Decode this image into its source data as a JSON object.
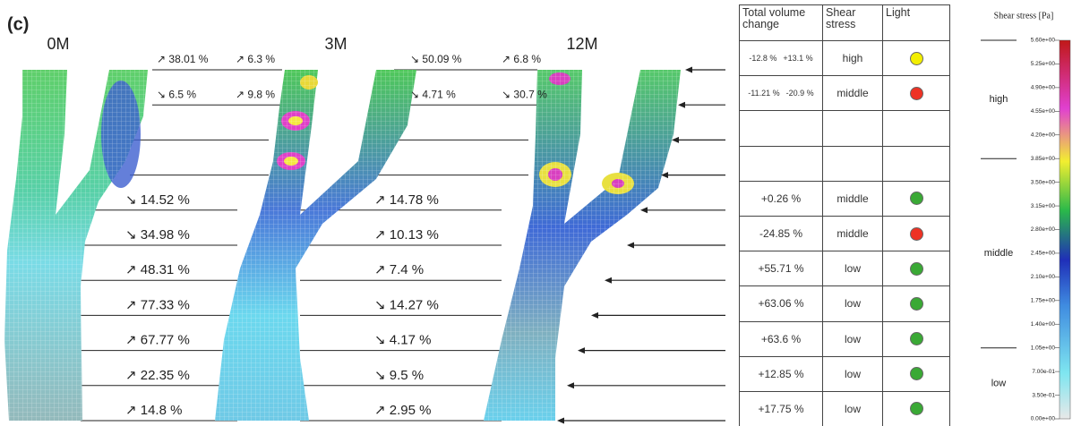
{
  "panel_label": "(c)",
  "timepoints": [
    "0M",
    "3M",
    "12M"
  ],
  "changes": [
    {
      "branches": [
        [
          "↗ 38.01 %",
          "↗ 6.3 %"
        ],
        [
          "↘ 6.5 %",
          "↗ 9.8 %"
        ]
      ],
      "trunk": [
        "↘ 14.52 %",
        "↘ 34.98 %",
        "↗ 48.31 %",
        "↗ 77.33 %",
        "↗ 67.77 %",
        "↗ 22.35 %",
        "↗ 14.8 %"
      ]
    },
    {
      "branches": [
        [
          "↘ 50.09 %",
          "↗ 6.8 %"
        ],
        [
          "↘ 4.71 %",
          "↘ 30.7 %"
        ]
      ],
      "trunk": [
        "↗ 14.78 %",
        "↗ 10.13 %",
        "↗ 7.4 %",
        "↘ 14.27 %",
        "↘ 4.17 %",
        "↘ 9.5 %",
        "↗ 2.95 %"
      ]
    }
  ],
  "table": {
    "header": [
      "Total volume change",
      "Shear stress",
      "Light"
    ],
    "rows": [
      {
        "change": [
          "-12.8 %",
          "+13.1 %"
        ],
        "shear": "high",
        "light": "#f2ee00"
      },
      {
        "change": [
          "-11.21 %",
          "-20.9 %"
        ],
        "shear": "middle",
        "light": "#ee3224"
      },
      null,
      null,
      {
        "change": [
          "+0.26 %"
        ],
        "shear": "middle",
        "light": "#3aa935"
      },
      {
        "change": [
          "-24.85 %"
        ],
        "shear": "middle",
        "light": "#ee3224"
      },
      {
        "change": [
          "+55.71 %"
        ],
        "shear": "low",
        "light": "#3aa935"
      },
      {
        "change": [
          "+63.06 %"
        ],
        "shear": "low",
        "light": "#3aa935"
      },
      {
        "change": [
          "+63.6 %"
        ],
        "shear": "low",
        "light": "#3aa935"
      },
      {
        "change": [
          "+12.85 %"
        ],
        "shear": "low",
        "light": "#3aa935"
      },
      {
        "change": [
          "+17.75 %"
        ],
        "shear": "low",
        "light": "#3aa935"
      }
    ]
  },
  "colorbar": {
    "title": "Shear stress [Pa]",
    "lim": [
      0,
      5.6
    ],
    "ticks": [
      {
        "value": 5.6,
        "label": "5.60e+00"
      },
      {
        "value": 5.25,
        "label": "5.25e+00"
      },
      {
        "value": 4.9,
        "label": "4.90e+00"
      },
      {
        "value": 4.55,
        "label": "4.55e+00"
      },
      {
        "value": 4.2,
        "label": "4.20e+00"
      },
      {
        "value": 3.85,
        "label": "3.85e+00"
      },
      {
        "value": 3.5,
        "label": "3.50e+00"
      },
      {
        "value": 3.15,
        "label": "3.15e+00"
      },
      {
        "value": 2.8,
        "label": "2.80e+00"
      },
      {
        "value": 2.45,
        "label": "2.45e+00"
      },
      {
        "value": 2.1,
        "label": "2.10e+00"
      },
      {
        "value": 1.75,
        "label": "1.75e+00"
      },
      {
        "value": 1.4,
        "label": "1.40e+00"
      },
      {
        "value": 1.05,
        "label": "1.05e+00"
      },
      {
        "value": 0.7,
        "label": "7.00e-01"
      },
      {
        "value": 0.35,
        "label": "3.50e-01"
      },
      {
        "value": 0,
        "label": "0.00e+00"
      }
    ],
    "zones": [
      {
        "label": "high",
        "range": [
          3.85,
          5.6
        ]
      },
      {
        "label": "middle",
        "range": [
          1.05,
          3.85
        ]
      },
      {
        "label": "low",
        "range": [
          0,
          1.05
        ]
      }
    ]
  }
}
